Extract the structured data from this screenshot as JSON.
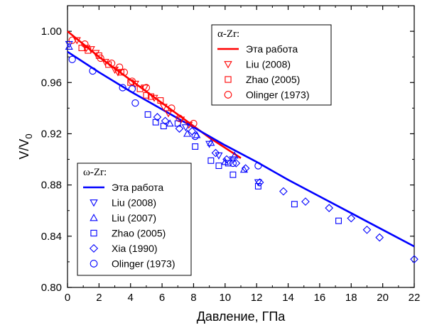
{
  "chart_data": {
    "type": "scatter",
    "xlabel": "Давление, ГПа",
    "ylabel_main": "V/V",
    "ylabel_sub": "0",
    "xlim": [
      0,
      22
    ],
    "ylim": [
      0.8,
      1.02
    ],
    "xticks": [
      0,
      2,
      4,
      6,
      8,
      10,
      12,
      14,
      16,
      18,
      20,
      22
    ],
    "yticks": [
      0.8,
      0.84,
      0.88,
      0.92,
      0.96,
      1.0
    ],
    "ytick_labels": [
      "0.80",
      "0.84",
      "0.88",
      "0.92",
      "0.96",
      "1.00"
    ],
    "grid": false,
    "colors": {
      "alpha": "#ff0000",
      "omega": "#0000ff"
    },
    "groups": [
      {
        "key": "alpha",
        "title": "α-Zr:",
        "legend_position": "top-right",
        "color": "#ff0000",
        "fit": {
          "name": "Эта работа",
          "x": [
            0,
            1,
            2,
            3,
            4,
            5,
            6,
            7,
            8,
            9,
            10,
            11
          ],
          "y": [
            1.0,
            0.99,
            0.98,
            0.971,
            0.962,
            0.953,
            0.944,
            0.935,
            0.926,
            0.917,
            0.909,
            0.901
          ]
        },
        "series": [
          {
            "name": "Liu (2008)",
            "marker": "triangle-down",
            "points": [
              [
                0.6,
                0.993
              ],
              [
                1.2,
                0.987
              ],
              [
                1.5,
                0.986
              ],
              [
                1.8,
                0.983
              ],
              [
                2.4,
                0.976
              ],
              [
                3.0,
                0.97
              ],
              [
                3.2,
                0.968
              ],
              [
                4.3,
                0.959
              ],
              [
                4.9,
                0.956
              ],
              [
                5.5,
                0.948
              ],
              [
                6.1,
                0.941
              ],
              [
                6.4,
                0.936
              ],
              [
                7.2,
                0.931
              ],
              [
                7.7,
                0.927
              ]
            ]
          },
          {
            "name": "Zhao (2005)",
            "marker": "square",
            "points": [
              [
                0.9,
                0.987
              ],
              [
                1.3,
                0.985
              ],
              [
                2.0,
                0.981
              ],
              [
                2.6,
                0.974
              ],
              [
                3.4,
                0.968
              ],
              [
                4.0,
                0.96
              ],
              [
                4.6,
                0.955
              ],
              [
                5.0,
                0.95
              ],
              [
                5.3,
                0.949
              ],
              [
                5.9,
                0.946
              ]
            ]
          },
          {
            "name": "Olinger (1973)",
            "marker": "circle",
            "points": [
              [
                0.3,
                0.993
              ],
              [
                1.1,
                0.99
              ],
              [
                2.1,
                0.979
              ],
              [
                2.8,
                0.975
              ],
              [
                3.3,
                0.972
              ],
              [
                3.6,
                0.968
              ],
              [
                4.1,
                0.961
              ],
              [
                5.0,
                0.956
              ],
              [
                6.6,
                0.94
              ],
              [
                7.1,
                0.932
              ],
              [
                8.0,
                0.928
              ]
            ]
          }
        ]
      },
      {
        "key": "omega",
        "title": "ω-Zr:",
        "legend_position": "bottom-left",
        "color": "#0000ff",
        "fit": {
          "name": "Эта работа",
          "x": [
            0,
            2,
            4,
            6,
            8,
            10,
            12,
            14,
            16,
            18,
            20,
            22
          ],
          "y": [
            0.984,
            0.968,
            0.953,
            0.939,
            0.925,
            0.911,
            0.898,
            0.884,
            0.871,
            0.858,
            0.845,
            0.832
          ]
        },
        "series": [
          {
            "name": "Liu (2008)",
            "marker": "triangle-down",
            "points": [
              [
                0.1,
                0.99
              ],
              [
                7.5,
                0.925
              ],
              [
                9.0,
                0.912
              ],
              [
                9.6,
                0.903
              ],
              [
                10.5,
                0.9
              ],
              [
                12.1,
                0.882
              ]
            ]
          },
          {
            "name": "Liu (2007)",
            "marker": "triangle-up",
            "points": [
              [
                0.1,
                0.988
              ],
              [
                6.5,
                0.928
              ],
              [
                7.6,
                0.92
              ],
              [
                8.2,
                0.919
              ],
              [
                9.1,
                0.913
              ],
              [
                10.0,
                0.898
              ],
              [
                10.6,
                0.903
              ],
              [
                11.2,
                0.892
              ]
            ]
          },
          {
            "name": "Zhao (2005)",
            "marker": "square",
            "points": [
              [
                5.1,
                0.935
              ],
              [
                5.6,
                0.929
              ],
              [
                6.1,
                0.926
              ],
              [
                7.0,
                0.928
              ],
              [
                8.1,
                0.91
              ],
              [
                9.1,
                0.899
              ],
              [
                9.6,
                0.895
              ],
              [
                10.2,
                0.897
              ],
              [
                10.5,
                0.888
              ],
              [
                12.1,
                0.879
              ],
              [
                14.4,
                0.865
              ],
              [
                17.2,
                0.852
              ]
            ]
          },
          {
            "name": "Xia (1990)",
            "marker": "diamond",
            "points": [
              [
                5.7,
                0.933
              ],
              [
                6.2,
                0.93
              ],
              [
                7.1,
                0.924
              ],
              [
                7.9,
                0.922
              ],
              [
                9.4,
                0.905
              ],
              [
                10.1,
                0.9
              ],
              [
                10.7,
                0.897
              ],
              [
                11.3,
                0.893
              ],
              [
                12.2,
                0.882
              ],
              [
                13.7,
                0.875
              ],
              [
                15.1,
                0.867
              ],
              [
                16.6,
                0.862
              ],
              [
                18.0,
                0.854
              ],
              [
                19.0,
                0.845
              ],
              [
                19.8,
                0.839
              ],
              [
                22.0,
                0.822
              ]
            ]
          },
          {
            "name": "Olinger (1973)",
            "marker": "circle",
            "points": [
              [
                0.3,
                0.978
              ],
              [
                1.6,
                0.969
              ],
              [
                4.1,
                0.955
              ],
              [
                4.3,
                0.944
              ],
              [
                8.1,
                0.918
              ],
              [
                10.5,
                0.897
              ],
              [
                12.1,
                0.895
              ],
              [
                3.5,
                0.956
              ]
            ]
          }
        ]
      }
    ]
  }
}
